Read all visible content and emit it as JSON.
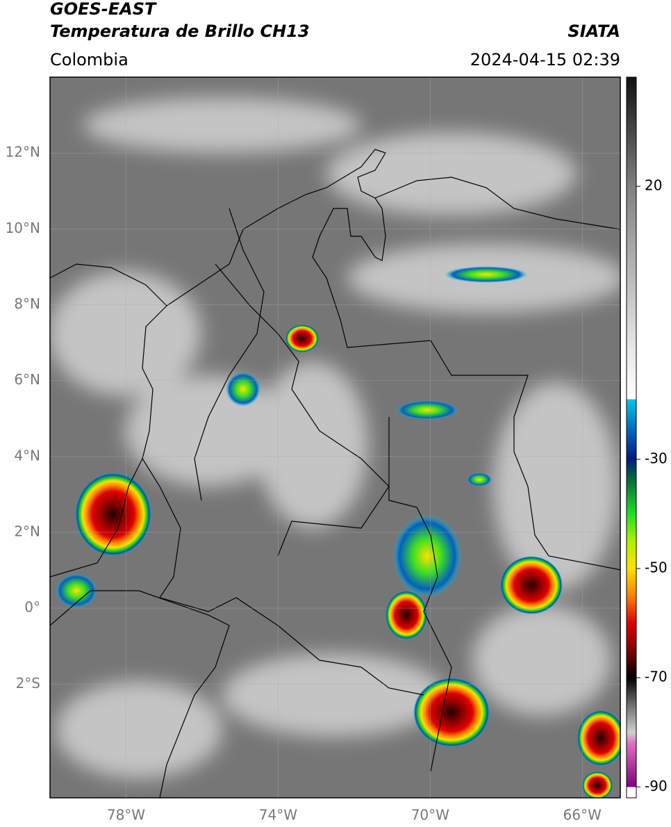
{
  "header": {
    "satellite": "GOES-EAST",
    "product": "Temperatura de Brillo CH13",
    "source": "SIATA",
    "region": "Colombia",
    "datetime": "2024-04-15 02:39"
  },
  "map": {
    "lon_range": [
      -80,
      -65
    ],
    "lat_range": [
      -5,
      14
    ],
    "lat_ticks": [
      {
        "value": 12,
        "label": "12°N"
      },
      {
        "value": 10,
        "label": "10°N"
      },
      {
        "value": 8,
        "label": "8°N"
      },
      {
        "value": 6,
        "label": "6°N"
      },
      {
        "value": 4,
        "label": "4°N"
      },
      {
        "value": 2,
        "label": "2°N"
      },
      {
        "value": 0,
        "label": "0°"
      },
      {
        "value": -2,
        "label": "2°S"
      }
    ],
    "lon_ticks": [
      {
        "value": -78,
        "label": "78°W"
      },
      {
        "value": -74,
        "label": "74°W"
      },
      {
        "value": -70,
        "label": "70°W"
      },
      {
        "value": -66,
        "label": "66°W"
      }
    ]
  },
  "colorbar": {
    "range": [
      -92,
      40
    ],
    "ticks": [
      20,
      -30,
      -50,
      -70,
      -90
    ],
    "colormap": [
      {
        "value": 40,
        "color": "#111111"
      },
      {
        "value": 20,
        "color": "#808080"
      },
      {
        "value": -10,
        "color": "#e8e8e8"
      },
      {
        "value": -19,
        "color": "#ffffff"
      },
      {
        "value": -19,
        "color": "#00c8e8"
      },
      {
        "value": -25,
        "color": "#0060c0"
      },
      {
        "value": -30,
        "color": "#001a80"
      },
      {
        "value": -33,
        "color": "#006040"
      },
      {
        "value": -40,
        "color": "#20e020"
      },
      {
        "value": -45,
        "color": "#b0f000"
      },
      {
        "value": -50,
        "color": "#ffe000"
      },
      {
        "value": -55,
        "color": "#ff8000"
      },
      {
        "value": -60,
        "color": "#e00000"
      },
      {
        "value": -65,
        "color": "#800000"
      },
      {
        "value": -70,
        "color": "#000000"
      },
      {
        "value": -75,
        "color": "#707070"
      },
      {
        "value": -80,
        "color": "#d0d0d0"
      },
      {
        "value": -82,
        "color": "#e070c0"
      },
      {
        "value": -90,
        "color": "#800080"
      },
      {
        "value": -90,
        "color": "#ffffff"
      }
    ]
  }
}
